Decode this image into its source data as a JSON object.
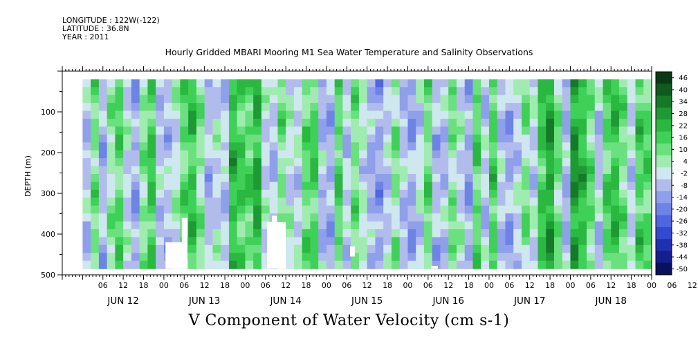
{
  "header": {
    "longitude": "LONGITUDE : 122W(-122)",
    "latitude": "LATITUDE : 36.8N",
    "year": "YEAR : 2011"
  },
  "chart_data": {
    "type": "heatmap",
    "title": "Hourly Gridded MBARI Mooring M1 Sea Water Temperature and Salinity Observations",
    "bottom_title": "V Component of Water Velocity (cm s-1)",
    "ylabel": "DEPTH (m)",
    "xlabel": "",
    "ylim": [
      500,
      0
    ],
    "y_ticks": [
      100,
      200,
      300,
      400,
      500
    ],
    "x_hour_labels": [
      "06",
      "12",
      "18",
      "00",
      "06",
      "12",
      "18",
      "00",
      "06",
      "12",
      "18",
      "00",
      "06",
      "12",
      "18",
      "00",
      "06",
      "12",
      "18",
      "00",
      "06",
      "12",
      "18",
      "00",
      "06",
      "12",
      "18",
      "00",
      "06",
      "12",
      "18",
      "00"
    ],
    "x_day_labels": [
      "JUN 12",
      "JUN 13",
      "JUN 14",
      "JUN 15",
      "JUN 16",
      "JUN 17",
      "JUN 18"
    ],
    "data_depth_range_m": [
      20,
      485
    ],
    "colorbar": {
      "levels": [
        46,
        40,
        34,
        28,
        22,
        16,
        10,
        4,
        -2,
        -8,
        -14,
        -20,
        -26,
        -32,
        -38,
        -44,
        -50
      ],
      "range": [
        -50,
        50
      ],
      "colors": [
        "#0a3a14",
        "#0f5a1e",
        "#157a28",
        "#1e9a34",
        "#2ab840",
        "#3fd058",
        "#6ae07e",
        "#a0ecb0",
        "#cfe7ef",
        "#b2bcec",
        "#8f9fea",
        "#6e83e6",
        "#4f66df",
        "#3449cf",
        "#1f31b0",
        "#131f8a",
        "#0a105c"
      ]
    },
    "bands": [
      {
        "day": 12.05,
        "v": -10
      },
      {
        "day": 12.15,
        "v": 6
      },
      {
        "day": 12.25,
        "v": -12
      },
      {
        "day": 12.35,
        "v": 2
      },
      {
        "day": 12.45,
        "v": 10
      },
      {
        "day": 12.55,
        "v": -6
      },
      {
        "day": 12.65,
        "v": -14
      },
      {
        "day": 12.75,
        "v": 4
      },
      {
        "day": 12.85,
        "v": 14
      },
      {
        "day": 12.95,
        "v": -8
      },
      {
        "day": 13.05,
        "v": -10
      },
      {
        "day": 13.15,
        "v": -4
      },
      {
        "day": 13.25,
        "v": 8
      },
      {
        "day": 13.35,
        "v": 16
      },
      {
        "day": 13.45,
        "v": 2
      },
      {
        "day": 13.55,
        "v": -12
      },
      {
        "day": 13.65,
        "v": -6
      },
      {
        "day": 13.75,
        "v": -8
      },
      {
        "day": 13.85,
        "v": 18
      },
      {
        "day": 13.95,
        "v": 12
      },
      {
        "day": 14.05,
        "v": 10
      },
      {
        "day": 14.15,
        "v": 20
      },
      {
        "day": 14.25,
        "v": -6
      },
      {
        "day": 14.35,
        "v": -10
      },
      {
        "day": 14.45,
        "v": 6
      },
      {
        "day": 14.55,
        "v": -4
      },
      {
        "day": 14.65,
        "v": -8
      },
      {
        "day": 14.75,
        "v": 8
      },
      {
        "day": 14.85,
        "v": 12
      },
      {
        "day": 14.95,
        "v": -10
      },
      {
        "day": 15.05,
        "v": -14
      },
      {
        "day": 15.15,
        "v": 10
      },
      {
        "day": 15.25,
        "v": -8
      },
      {
        "day": 15.35,
        "v": 6
      },
      {
        "day": 15.45,
        "v": -4
      },
      {
        "day": 15.55,
        "v": -12
      },
      {
        "day": 15.65,
        "v": -16
      },
      {
        "day": 15.75,
        "v": -8
      },
      {
        "day": 15.85,
        "v": 4
      },
      {
        "day": 15.95,
        "v": -10
      },
      {
        "day": 16.05,
        "v": -14
      },
      {
        "day": 16.15,
        "v": -6
      },
      {
        "day": 16.25,
        "v": 8
      },
      {
        "day": 16.35,
        "v": -12
      },
      {
        "day": 16.45,
        "v": -10
      },
      {
        "day": 16.55,
        "v": 4
      },
      {
        "day": 16.65,
        "v": -6
      },
      {
        "day": 16.75,
        "v": -14
      },
      {
        "day": 16.85,
        "v": 10
      },
      {
        "day": 16.95,
        "v": -8
      },
      {
        "day": 17.05,
        "v": 12
      },
      {
        "day": 17.15,
        "v": -10
      },
      {
        "day": 17.25,
        "v": -14
      },
      {
        "day": 17.35,
        "v": -6
      },
      {
        "day": 17.45,
        "v": 4
      },
      {
        "day": 17.55,
        "v": -8
      },
      {
        "day": 17.65,
        "v": 14
      },
      {
        "day": 17.75,
        "v": 22
      },
      {
        "day": 17.85,
        "v": 6
      },
      {
        "day": 17.95,
        "v": -12
      },
      {
        "day": 18.05,
        "v": 24
      },
      {
        "day": 18.15,
        "v": 18
      },
      {
        "day": 18.25,
        "v": 8
      },
      {
        "day": 18.35,
        "v": -10
      },
      {
        "day": 18.45,
        "v": 10
      },
      {
        "day": 18.55,
        "v": 16
      },
      {
        "day": 18.65,
        "v": 6
      },
      {
        "day": 18.75,
        "v": -8
      },
      {
        "day": 18.85,
        "v": 12
      },
      {
        "day": 18.95,
        "v": 10
      }
    ],
    "missing_regions": [
      {
        "day_start": 13.02,
        "day_end": 13.29,
        "depth_start": 420,
        "depth_end": 485
      },
      {
        "day_start": 13.22,
        "day_end": 13.29,
        "depth_start": 360,
        "depth_end": 420
      },
      {
        "day_start": 14.27,
        "day_end": 14.5,
        "depth_start": 370,
        "depth_end": 485
      },
      {
        "day_start": 14.33,
        "day_end": 14.39,
        "depth_start": 355,
        "depth_end": 370
      },
      {
        "day_start": 15.29,
        "day_end": 15.35,
        "depth_start": 430,
        "depth_end": 455
      },
      {
        "day_start": 16.29,
        "day_end": 16.37,
        "depth_start": 478,
        "depth_end": 485
      }
    ]
  }
}
